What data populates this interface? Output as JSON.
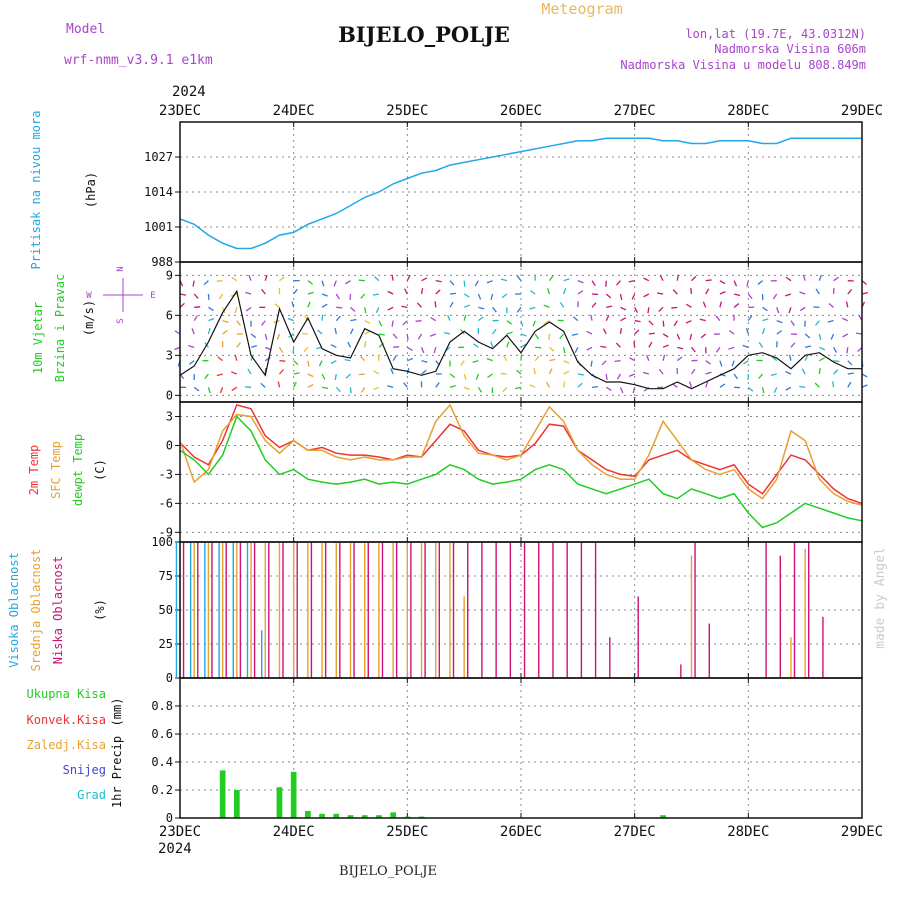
{
  "header": {
    "title": "Meteogram",
    "station": "BIJELO_POLJE",
    "model_label": "Model",
    "model_name": "wrf-nmm_v3.9.1  e1km",
    "lonlat": "lon,lat (19.7E, 43.0312N)",
    "altitude": "Nadmorska Visina 606m",
    "model_altitude": "Nadmorska Visina u modelu 808.849m",
    "footer_station": "BIJELO_POLJE",
    "watermark": "made by Angel"
  },
  "colors": {
    "pressure": "#22a7e6",
    "green": "#22cc22",
    "red": "#ee3333",
    "orange": "#e8a030",
    "magenta": "#cc1177",
    "blue": "#3377dd",
    "purple": "#aa44cc",
    "cyan": "#22bbcc",
    "title_orange": "#e8b860"
  },
  "chart_data": [
    {
      "type": "line",
      "title": "",
      "ylabel": "Pritisak na nivou mora",
      "yunit": "(hPa)",
      "ylim": [
        988,
        1040
      ],
      "yticks": [
        "988",
        "1001",
        "1014",
        "1027"
      ],
      "ytick_values": [
        988,
        1001,
        1014,
        1027
      ],
      "x_year": "2024",
      "xtick_labels": [
        "23DEC",
        "24DEC",
        "25DEC",
        "26DEC",
        "27DEC",
        "28DEC",
        "29DEC"
      ],
      "grid": true,
      "series": [
        {
          "values": [
            1004,
            1002,
            998,
            995,
            993,
            993,
            995,
            998,
            999,
            1002,
            1004,
            1006,
            1009,
            1012,
            1014,
            1017,
            1019,
            1021,
            1022,
            1024,
            1025,
            1026,
            1027,
            1028,
            1029,
            1030,
            1031,
            1032,
            1033,
            1033,
            1034,
            1034,
            1034,
            1034,
            1033,
            1033,
            1032,
            1032,
            1033,
            1033,
            1033,
            1032,
            1032,
            1034,
            1034,
            1034,
            1034,
            1034,
            1034
          ]
        }
      ]
    },
    {
      "type": "line",
      "title": "",
      "ylabel": "10m Vjetar Brzina i Pravac",
      "yunit": "(m/s)",
      "ylim": [
        -0.5,
        10
      ],
      "yticks": [
        "0",
        "3",
        "6",
        "9"
      ],
      "ytick_values": [
        0,
        3,
        6,
        9
      ],
      "compass": {
        "n": "N",
        "s": "S",
        "e": "E",
        "w": "W"
      },
      "xtick_labels": [
        "23DEC",
        "24DEC",
        "25DEC",
        "26DEC",
        "27DEC",
        "28DEC",
        "29DEC"
      ],
      "grid": true,
      "series": [
        {
          "values": [
            1.5,
            2.2,
            4.0,
            6.2,
            7.8,
            3.0,
            1.5,
            6.5,
            4.0,
            5.8,
            3.5,
            3.0,
            2.8,
            5.0,
            4.5,
            2.0,
            1.8,
            1.5,
            1.8,
            4.0,
            4.8,
            4.0,
            3.5,
            4.5,
            3.2,
            4.8,
            5.5,
            4.8,
            2.5,
            1.5,
            1.0,
            1.0,
            0.8,
            0.5,
            0.5,
            1.0,
            0.5,
            1.0,
            1.5,
            2.0,
            3.0,
            3.2,
            2.8,
            2.0,
            3.0,
            3.2,
            2.5,
            2.0,
            2.0
          ]
        }
      ]
    },
    {
      "type": "line",
      "title": "",
      "ylabel_lines": [
        "2m Temp",
        "SFC Temp",
        "dewpt Temp"
      ],
      "yunit": "(C)",
      "ylim": [
        -10,
        4.5
      ],
      "yticks": [
        "-9",
        "-6",
        "-3",
        "0",
        "3"
      ],
      "ytick_values": [
        -9,
        -6,
        -3,
        0,
        3
      ],
      "xtick_labels": [
        "23DEC",
        "24DEC",
        "25DEC",
        "26DEC",
        "27DEC",
        "28DEC",
        "29DEC"
      ],
      "grid": true,
      "series": [
        {
          "values": [
            0.3,
            -1.2,
            -2.0,
            0.5,
            4.2,
            3.8,
            1.0,
            -0.2,
            0.5,
            -0.5,
            -0.2,
            -0.8,
            -1.0,
            -1.0,
            -1.2,
            -1.5,
            -1.0,
            -1.2,
            0.5,
            2.2,
            1.5,
            -0.5,
            -1.0,
            -1.2,
            -1.0,
            0.2,
            2.2,
            2.0,
            -0.5,
            -1.5,
            -2.5,
            -3.0,
            -3.2,
            -1.5,
            -1.0,
            -0.5,
            -1.5,
            -2.0,
            -2.5,
            -2.0,
            -4.0,
            -5.0,
            -3.0,
            -1.0,
            -1.5,
            -3.0,
            -4.5,
            -5.5,
            -6.0
          ]
        },
        {
          "values": [
            0.5,
            -3.8,
            -2.5,
            1.5,
            3.2,
            3.0,
            0.5,
            -0.8,
            0.5,
            -0.5,
            -0.5,
            -1.2,
            -1.5,
            -1.2,
            -1.5,
            -1.5,
            -1.2,
            -1.2,
            2.5,
            4.2,
            1.0,
            -0.8,
            -1.0,
            -1.5,
            -1.0,
            1.5,
            4.0,
            2.5,
            -0.5,
            -2.0,
            -3.0,
            -3.5,
            -3.5,
            -1.0,
            2.5,
            0.5,
            -1.5,
            -2.5,
            -3.0,
            -2.5,
            -4.5,
            -5.5,
            -3.5,
            1.5,
            0.5,
            -3.5,
            -5.0,
            -5.8,
            -6.2
          ]
        },
        {
          "values": [
            -0.5,
            -1.5,
            -3.0,
            -1.0,
            3.0,
            1.5,
            -1.5,
            -3.0,
            -2.5,
            -3.5,
            -3.8,
            -4.0,
            -3.8,
            -3.5,
            -4.0,
            -3.8,
            -4.0,
            -3.5,
            -3.0,
            -2.0,
            -2.5,
            -3.5,
            -4.0,
            -3.8,
            -3.5,
            -2.5,
            -2.0,
            -2.5,
            -4.0,
            -4.5,
            -5.0,
            -4.5,
            -4.0,
            -3.5,
            -5.0,
            -5.5,
            -4.5,
            -5.0,
            -5.5,
            -5.0,
            -7.0,
            -8.5,
            -8.0,
            -7.0,
            -6.0,
            -6.5,
            -7.0,
            -7.5,
            -7.8
          ]
        }
      ]
    },
    {
      "type": "bar",
      "title": "",
      "ylabel_lines": [
        "Visoka Oblacnost",
        "Srednja Oblacnost",
        "Niska Oblacnost"
      ],
      "yunit": "(%)",
      "ylim": [
        0,
        100
      ],
      "yticks": [
        "0",
        "25",
        "50",
        "75",
        "100"
      ],
      "ytick_values": [
        0,
        25,
        50,
        75,
        100
      ],
      "xtick_labels": [
        "23DEC",
        "24DEC",
        "25DEC",
        "26DEC",
        "27DEC",
        "28DEC",
        "29DEC"
      ],
      "grid": true,
      "series": [
        {
          "name": "Visoka Oblacnost",
          "values": [
            100,
            100,
            100,
            100,
            100,
            100,
            35,
            0,
            0,
            0,
            0,
            0,
            0,
            0,
            0,
            0,
            0,
            0,
            0,
            0,
            0,
            0,
            0,
            0,
            0,
            0,
            0,
            0,
            0,
            0,
            0,
            0,
            0,
            0,
            0,
            0,
            0,
            0,
            0,
            0,
            0,
            0,
            0,
            0,
            0,
            0,
            0,
            0,
            0
          ]
        },
        {
          "name": "Srednja Oblacnost",
          "values": [
            100,
            100,
            100,
            100,
            100,
            100,
            100,
            100,
            100,
            100,
            100,
            100,
            100,
            100,
            100,
            100,
            100,
            100,
            100,
            100,
            60,
            0,
            0,
            0,
            0,
            0,
            0,
            0,
            0,
            0,
            0,
            0,
            0,
            0,
            0,
            0,
            90,
            0,
            0,
            0,
            0,
            0,
            0,
            30,
            95,
            0,
            0,
            0,
            0
          ]
        },
        {
          "name": "Niska Oblacnost",
          "values": [
            100,
            100,
            100,
            100,
            100,
            100,
            100,
            100,
            100,
            100,
            100,
            100,
            100,
            100,
            100,
            100,
            100,
            100,
            100,
            100,
            100,
            100,
            100,
            100,
            100,
            100,
            100,
            100,
            100,
            100,
            30,
            0,
            60,
            0,
            0,
            10,
            100,
            40,
            0,
            0,
            0,
            100,
            90,
            100,
            100,
            45,
            0,
            0,
            0
          ]
        }
      ]
    },
    {
      "type": "bar",
      "title": "",
      "ylabel_lines": [
        "1hr Precip"
      ],
      "yunit": "(mm)",
      "ylim": [
        0,
        1.0
      ],
      "yticks": [
        "0",
        "0.2",
        "0.4",
        "0.6",
        "0.8"
      ],
      "ytick_values": [
        0,
        0.2,
        0.4,
        0.6,
        0.8
      ],
      "legend_labels": [
        "Ukupna Kisa",
        "Konvek.Kisa",
        "Zaledj.Kisa",
        "Snijeg",
        "Grad"
      ],
      "xtick_labels": [
        "23DEC",
        "24DEC",
        "25DEC",
        "26DEC",
        "27DEC",
        "28DEC",
        "29DEC"
      ],
      "x_year": "2024",
      "grid": true,
      "series": [
        {
          "name": "Ukupna Kisa",
          "values": [
            0,
            0,
            0,
            0.34,
            0.2,
            0,
            0,
            0.22,
            0.33,
            0.05,
            0.03,
            0.03,
            0.02,
            0.02,
            0.02,
            0.04,
            0.01,
            0.01,
            0,
            0,
            0,
            0,
            0,
            0,
            0,
            0,
            0,
            0,
            0,
            0,
            0,
            0,
            0,
            0,
            0.02,
            0,
            0,
            0,
            0,
            0,
            0,
            0,
            0,
            0,
            0,
            0,
            0,
            0,
            0
          ]
        }
      ]
    }
  ]
}
